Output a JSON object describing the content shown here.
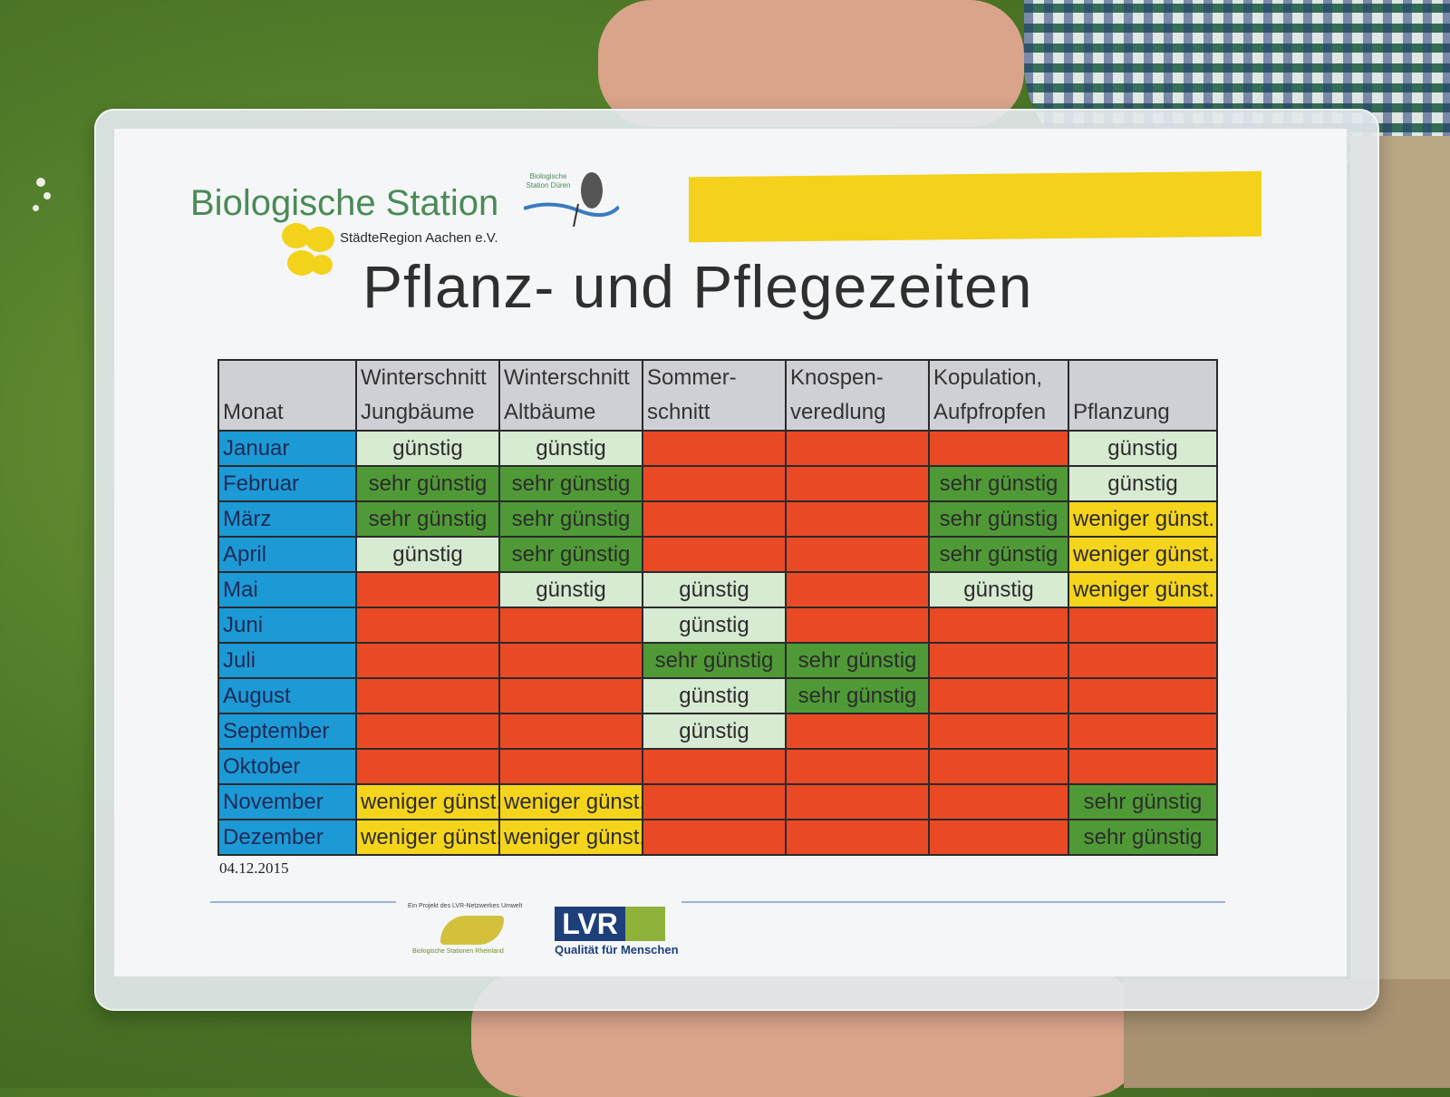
{
  "header": {
    "org_name": "Biologische Station",
    "org_sub": "StädteRegion Aachen e.V.",
    "partner_logo_text": "Biologische Station Düren",
    "title": "Pflanz- und Pflegezeiten"
  },
  "table": {
    "columns": [
      "Monat",
      "Winterschnitt Jungbäume",
      "Winterschnitt Altbäume",
      "Sommer-schnitt",
      "Knospen-veredlung",
      "Kopulation, Aufpfropfen",
      "Pflanzung"
    ],
    "legend_colors": {
      "günstig": "#d7ead2",
      "sehr günstig": "#4f9a36",
      "weniger günst.": "#f5d41c",
      "ungünstig": "#e94a25",
      "month": "#1c9ad6"
    },
    "rows": [
      {
        "month": "Januar",
        "cells": [
          {
            "t": "günstig",
            "c": "g"
          },
          {
            "t": "günstig",
            "c": "g"
          },
          {
            "t": "",
            "c": "r"
          },
          {
            "t": "",
            "c": "r"
          },
          {
            "t": "",
            "c": "r"
          },
          {
            "t": "günstig",
            "c": "g"
          }
        ]
      },
      {
        "month": "Februar",
        "cells": [
          {
            "t": "sehr günstig",
            "c": "sg"
          },
          {
            "t": "sehr günstig",
            "c": "sg"
          },
          {
            "t": "",
            "c": "r"
          },
          {
            "t": "",
            "c": "r"
          },
          {
            "t": "sehr günstig",
            "c": "sg"
          },
          {
            "t": "günstig",
            "c": "g"
          }
        ]
      },
      {
        "month": "März",
        "cells": [
          {
            "t": "sehr günstig",
            "c": "sg"
          },
          {
            "t": "sehr günstig",
            "c": "sg"
          },
          {
            "t": "",
            "c": "r"
          },
          {
            "t": "",
            "c": "r"
          },
          {
            "t": "sehr günstig",
            "c": "sg"
          },
          {
            "t": "weniger günst.",
            "c": "wg"
          }
        ]
      },
      {
        "month": "April",
        "cells": [
          {
            "t": "günstig",
            "c": "g"
          },
          {
            "t": "sehr günstig",
            "c": "sg"
          },
          {
            "t": "",
            "c": "r"
          },
          {
            "t": "",
            "c": "r"
          },
          {
            "t": "sehr günstig",
            "c": "sg"
          },
          {
            "t": "weniger günst.",
            "c": "wg"
          }
        ]
      },
      {
        "month": "Mai",
        "cells": [
          {
            "t": "",
            "c": "r"
          },
          {
            "t": "günstig",
            "c": "g"
          },
          {
            "t": "günstig",
            "c": "g"
          },
          {
            "t": "",
            "c": "r"
          },
          {
            "t": "günstig",
            "c": "g"
          },
          {
            "t": "weniger günst.",
            "c": "wg"
          }
        ]
      },
      {
        "month": "Juni",
        "cells": [
          {
            "t": "",
            "c": "r"
          },
          {
            "t": "",
            "c": "r"
          },
          {
            "t": "günstig",
            "c": "g"
          },
          {
            "t": "",
            "c": "r"
          },
          {
            "t": "",
            "c": "r"
          },
          {
            "t": "",
            "c": "r"
          }
        ]
      },
      {
        "month": "Juli",
        "cells": [
          {
            "t": "",
            "c": "r"
          },
          {
            "t": "",
            "c": "r"
          },
          {
            "t": "sehr günstig",
            "c": "sg"
          },
          {
            "t": "sehr günstig",
            "c": "sg"
          },
          {
            "t": "",
            "c": "r"
          },
          {
            "t": "",
            "c": "r"
          }
        ]
      },
      {
        "month": "August",
        "cells": [
          {
            "t": "",
            "c": "r"
          },
          {
            "t": "",
            "c": "r"
          },
          {
            "t": "günstig",
            "c": "g"
          },
          {
            "t": "sehr günstig",
            "c": "sg"
          },
          {
            "t": "",
            "c": "r"
          },
          {
            "t": "",
            "c": "r"
          }
        ]
      },
      {
        "month": "September",
        "cells": [
          {
            "t": "",
            "c": "r"
          },
          {
            "t": "",
            "c": "r"
          },
          {
            "t": "günstig",
            "c": "g"
          },
          {
            "t": "",
            "c": "r"
          },
          {
            "t": "",
            "c": "r"
          },
          {
            "t": "",
            "c": "r"
          }
        ]
      },
      {
        "month": "Oktober",
        "cells": [
          {
            "t": "",
            "c": "r"
          },
          {
            "t": "",
            "c": "r"
          },
          {
            "t": "",
            "c": "r"
          },
          {
            "t": "",
            "c": "r"
          },
          {
            "t": "",
            "c": "r"
          },
          {
            "t": "",
            "c": "r"
          }
        ]
      },
      {
        "month": "November",
        "cells": [
          {
            "t": "weniger günst.",
            "c": "wg"
          },
          {
            "t": "weniger günst.",
            "c": "wg"
          },
          {
            "t": "",
            "c": "r"
          },
          {
            "t": "",
            "c": "r"
          },
          {
            "t": "",
            "c": "r"
          },
          {
            "t": "sehr günstig",
            "c": "sg"
          }
        ]
      },
      {
        "month": "Dezember",
        "cells": [
          {
            "t": "weniger günst.",
            "c": "wg"
          },
          {
            "t": "weniger günst.",
            "c": "wg"
          },
          {
            "t": "",
            "c": "r"
          },
          {
            "t": "",
            "c": "r"
          },
          {
            "t": "",
            "c": "r"
          },
          {
            "t": "sehr günstig",
            "c": "sg"
          }
        ]
      }
    ]
  },
  "footer": {
    "date": "04.12.2015",
    "project_text": "Ein Projekt des LVR-Netzwerkes Umwelt",
    "project_name": "Biologische Stationen Rheinland",
    "lvr_logo": "LVR",
    "lvr_claim": "Qualität für Menschen"
  }
}
